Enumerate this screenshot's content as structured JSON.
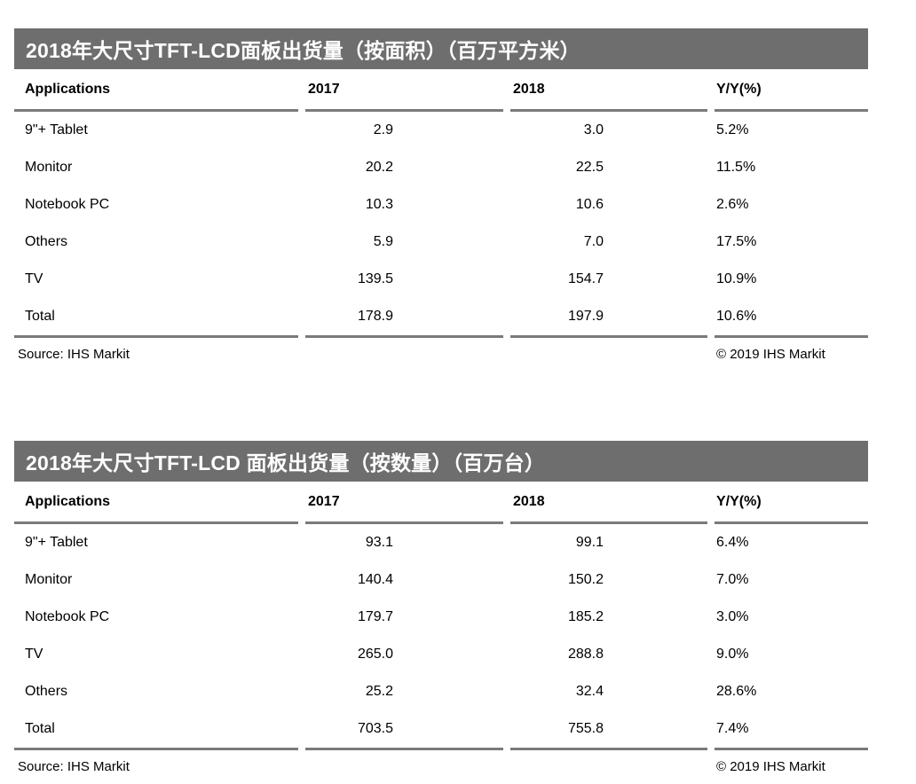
{
  "colors": {
    "title_bar_bg": "#6e6e6e",
    "title_text": "#ffffff",
    "body_text": "#000000",
    "rule_line": "#7a7a7a",
    "page_bg": "#ffffff"
  },
  "tables": [
    {
      "title": "2018年大尺寸TFT-LCD面板出货量（按面积）（百万平方米）",
      "columns": [
        "Applications",
        "2017",
        "2018",
        "Y/Y(%)"
      ],
      "rows": [
        [
          "9\"+ Tablet",
          "2.9",
          "3.0",
          "5.2%"
        ],
        [
          "Monitor",
          "20.2",
          "22.5",
          "11.5%"
        ],
        [
          "Notebook PC",
          "10.3",
          "10.6",
          "2.6%"
        ],
        [
          "Others",
          "5.9",
          "7.0",
          "17.5%"
        ],
        [
          "TV",
          "139.5",
          "154.7",
          "10.9%"
        ],
        [
          "Total",
          "178.9",
          "197.9",
          "10.6%"
        ]
      ],
      "source": "Source: IHS Markit",
      "copyright": "© 2019 IHS Markit"
    },
    {
      "title": "2018年大尺寸TFT-LCD 面板出货量（按数量）（百万台）",
      "columns": [
        "Applications",
        "2017",
        "2018",
        "Y/Y(%)"
      ],
      "rows": [
        [
          "9\"+ Tablet",
          "93.1",
          "99.1",
          "6.4%"
        ],
        [
          "Monitor",
          "140.4",
          "150.2",
          "7.0%"
        ],
        [
          "Notebook PC",
          "179.7",
          "185.2",
          "3.0%"
        ],
        [
          "TV",
          "265.0",
          "288.8",
          "9.0%"
        ],
        [
          "Others",
          "25.2",
          "32.4",
          "28.6%"
        ],
        [
          "Total",
          "703.5",
          "755.8",
          "7.4%"
        ]
      ],
      "source": "Source: IHS Markit",
      "copyright": "© 2019 IHS Markit"
    }
  ]
}
